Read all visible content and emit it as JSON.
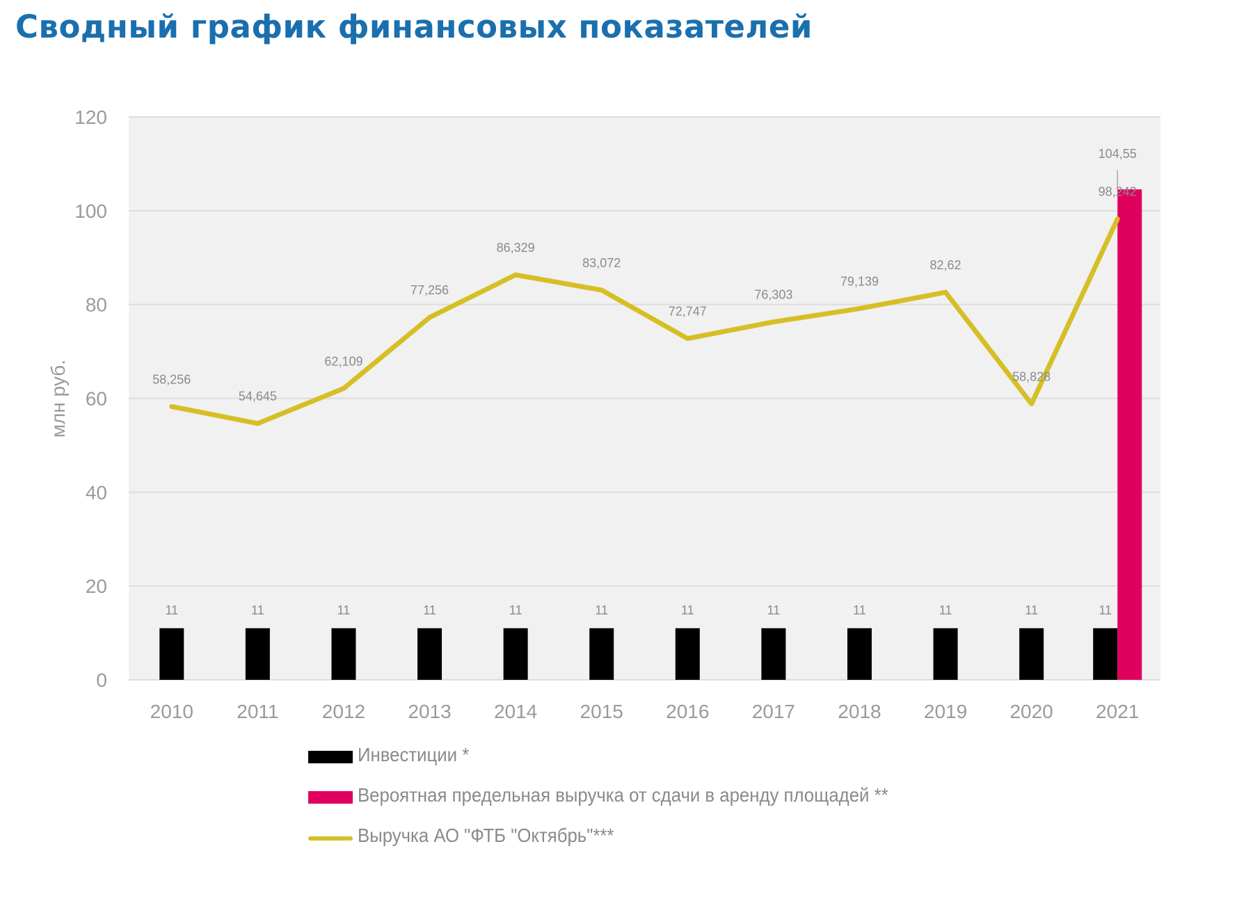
{
  "page": {
    "title": "Сводный график финансовых показателей"
  },
  "chart_data": {
    "type": "bar",
    "title": "",
    "ylabel": "млн руб.",
    "xlabel": "",
    "ylim": [
      0,
      120
    ],
    "y_ticks": [
      "0",
      "20",
      "40",
      "60",
      "80",
      "100",
      "120"
    ],
    "grid": true,
    "legend_position": "bottom",
    "categories": [
      "2010",
      "2011",
      "2012",
      "2013",
      "2014",
      "2015",
      "2016",
      "2017",
      "2018",
      "2019",
      "2020",
      "2021"
    ],
    "series": [
      {
        "name": "Инвестиции *",
        "kind": "bar",
        "color": "#000000",
        "values": [
          11,
          11,
          11,
          11,
          11,
          11,
          11,
          11,
          11,
          11,
          11,
          11
        ],
        "labels": [
          "11",
          "11",
          "11",
          "11",
          "11",
          "11",
          "11",
          "11",
          "11",
          "11",
          "11",
          "11"
        ]
      },
      {
        "name": "Вероятная предельная выручка от сдачи в аренду площадей **",
        "kind": "bar",
        "color": "#e0005e",
        "values": [
          null,
          null,
          null,
          null,
          null,
          null,
          null,
          null,
          null,
          null,
          null,
          104.55
        ],
        "labels": [
          "",
          "",
          "",
          "",
          "",
          "",
          "",
          "",
          "",
          "",
          "",
          "104,55"
        ]
      },
      {
        "name": "Выручка АО \"ФТБ \"Октябрь\"***",
        "kind": "line",
        "color": "#d6bf25",
        "values": [
          58.256,
          54.645,
          62.109,
          77.256,
          86.329,
          83.072,
          72.747,
          76.303,
          79.139,
          82.62,
          58.828,
          98.242
        ],
        "labels": [
          "58,256",
          "54,645",
          "62,109",
          "77,256",
          "86,329",
          "83,072",
          "72,747",
          "76,303",
          "79,139",
          "82,62",
          "58,828",
          "98,242"
        ]
      }
    ]
  }
}
